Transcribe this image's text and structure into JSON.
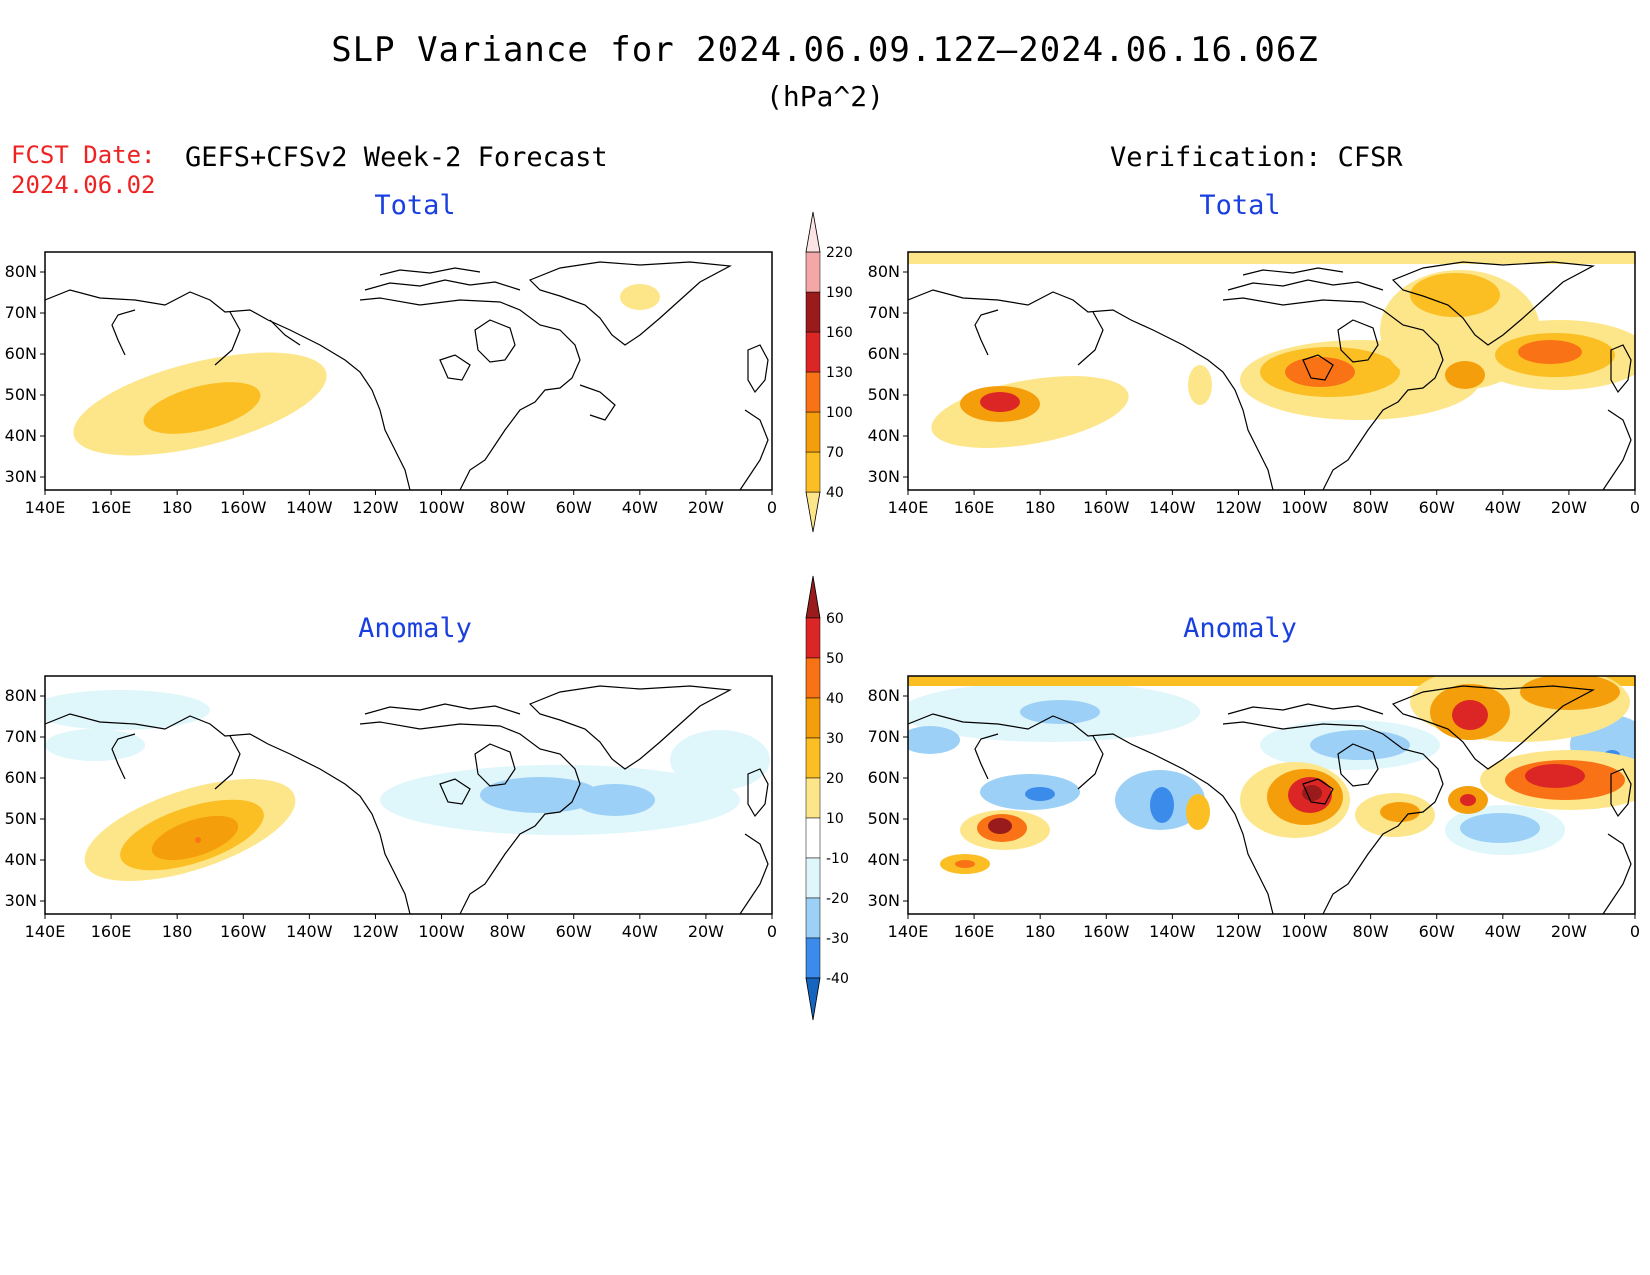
{
  "title": "SLP Variance for 2024.06.09.12Z–2024.06.16.06Z",
  "units": "(hPa^2)",
  "fcst_label": "FCST Date:",
  "fcst_date": "2024.06.02",
  "left_header": "GEFS+CFSv2 Week-2 Forecast",
  "right_header": "Verification: CFSR",
  "panels": {
    "forecast_total_title": "Total",
    "verif_total_title": "Total",
    "forecast_anomaly_title": "Anomaly",
    "verif_anomaly_title": "Anomaly"
  },
  "lat_labels": [
    "80N",
    "70N",
    "60N",
    "50N",
    "40N",
    "30N"
  ],
  "lon_labels": [
    "140E",
    "160E",
    "180",
    "160W",
    "140W",
    "120W",
    "100W",
    "80W",
    "60W",
    "40W",
    "20W",
    "0"
  ],
  "total_colorbar": {
    "labels": [
      "40",
      "70",
      "100",
      "130",
      "160",
      "190",
      "220"
    ],
    "colors": [
      "#fde68a",
      "#fbbf24",
      "#f59e0b",
      "#f97316",
      "#dc2626",
      "#991b1b",
      "#f4a7a7",
      "#fde4e4"
    ]
  },
  "anomaly_colorbar": {
    "labels": [
      "60",
      "50",
      "40",
      "30",
      "20",
      "10",
      "-10",
      "-20",
      "-30",
      "-40"
    ],
    "colors": [
      "#991b1b",
      "#dc2626",
      "#f97316",
      "#f59e0b",
      "#fbbf24",
      "#fde68a",
      "#ffffff",
      "#dff6fb",
      "#9dd0f6",
      "#3b8beb",
      "#1565c0"
    ]
  }
}
